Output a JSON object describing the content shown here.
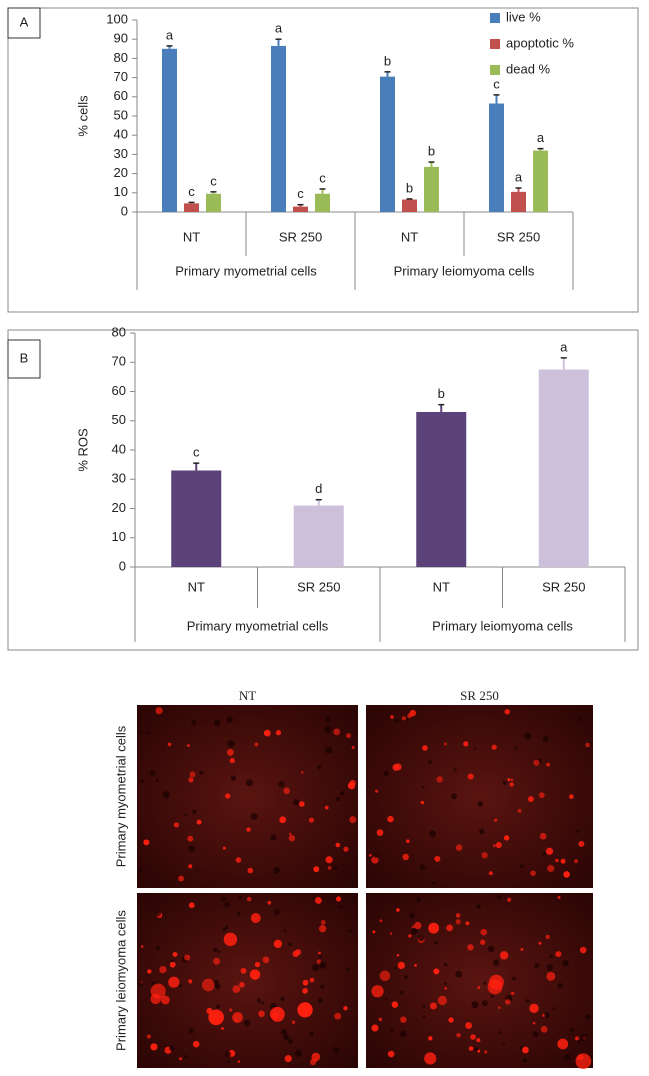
{
  "chart_data": [
    {
      "type": "bar",
      "panel": "A",
      "ylabel": "% cells",
      "categories": [
        "NT",
        "SR 250",
        "NT",
        "SR 250"
      ],
      "groups": [
        "Primary myometrial cells",
        "Primary leiomyoma cells"
      ],
      "ylim": [
        0,
        100
      ],
      "yticks": [
        0,
        10,
        20,
        30,
        40,
        50,
        60,
        70,
        80,
        90,
        100
      ],
      "legend": "top-right",
      "series": [
        {
          "name": "live %",
          "color": "#4a7ebb",
          "values": [
            85,
            86.5,
            70.5,
            56.5
          ],
          "errors": [
            1.5,
            3.5,
            2.5,
            4.5
          ],
          "annotations": [
            "a",
            "a",
            "b",
            "c"
          ]
        },
        {
          "name": "apoptotic %",
          "color": "#c0504d",
          "values": [
            4.5,
            2.8,
            6.5,
            10.5
          ],
          "errors": [
            0.5,
            1,
            0.3,
            2
          ],
          "annotations": [
            "c",
            "c",
            "b",
            "a"
          ]
        },
        {
          "name": "dead %",
          "color": "#9bbb59",
          "values": [
            9.5,
            9.5,
            23.5,
            32
          ],
          "errors": [
            1,
            2.5,
            2.5,
            1
          ],
          "annotations": [
            "c",
            "c",
            "b",
            "a"
          ]
        }
      ]
    },
    {
      "type": "bar",
      "panel": "B",
      "ylabel": "% ROS",
      "categories": [
        "NT",
        "SR 250",
        "NT",
        "SR 250"
      ],
      "groups": [
        "Primary myometrial cells",
        "Primary leiomyoma cells"
      ],
      "ylim": [
        0,
        80
      ],
      "yticks": [
        0,
        10,
        20,
        30,
        40,
        50,
        60,
        70,
        80
      ],
      "colors": [
        "#5b4278",
        "#ccc0da",
        "#5b4278",
        "#ccc0da"
      ],
      "values": [
        33,
        21,
        53,
        67.5
      ],
      "errors": [
        2.5,
        2,
        2.5,
        4
      ],
      "annotations": [
        "c",
        "d",
        "b",
        "a"
      ]
    }
  ],
  "micrographs": {
    "columns": [
      "NT",
      "SR 250"
    ],
    "rows": [
      "Primary myometrial cells",
      "Primary leiomyoma cells"
    ]
  }
}
